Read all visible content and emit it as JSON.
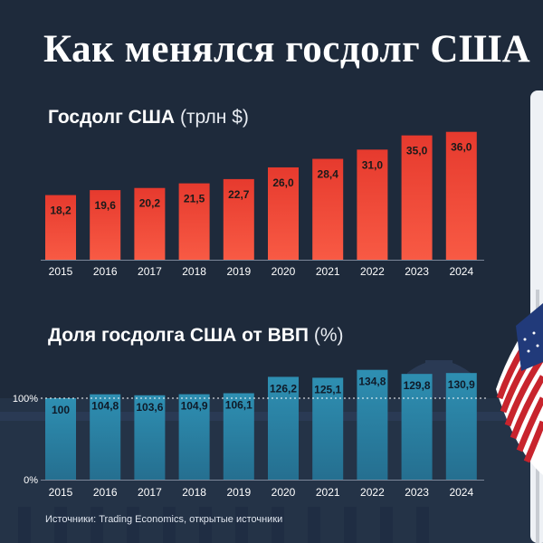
{
  "header": {
    "title": "Как менялся госдолг США"
  },
  "charts": {
    "debt": {
      "title_bold": "Госдолг США",
      "title_unit": "(трлн $)"
    },
    "share": {
      "title_bold": "Доля госдолга США от ВВП",
      "title_unit": "(%)",
      "ref_line_label": "100%",
      "zero_label": "0%"
    }
  },
  "footer": {
    "source": "Источники: Trading Economics, открытые источники"
  },
  "colors": {
    "background": "#1e2a3b",
    "debt_bar": "#f04a3a",
    "share_bar": "#2d87a8",
    "text": "#ffffff"
  },
  "chart_data": [
    {
      "type": "bar",
      "title": "Госдолг США (трлн $)",
      "categories": [
        "2015",
        "2016",
        "2017",
        "2018",
        "2019",
        "2020",
        "2021",
        "2022",
        "2023",
        "2024"
      ],
      "values": [
        18.2,
        19.6,
        20.2,
        21.5,
        22.7,
        26.0,
        28.4,
        31.0,
        35.0,
        36.0
      ],
      "value_labels": [
        "18,2",
        "19,6",
        "20,2",
        "21,5",
        "22,7",
        "26,0",
        "28,4",
        "31,0",
        "35,0",
        "36,0"
      ],
      "ylim": [
        0,
        40
      ],
      "grid": false
    },
    {
      "type": "bar",
      "title": "Доля госдолга США от ВВП (%)",
      "categories": [
        "2015",
        "2016",
        "2017",
        "2018",
        "2019",
        "2020",
        "2021",
        "2022",
        "2023",
        "2024"
      ],
      "values": [
        100,
        104.8,
        103.6,
        104.9,
        106.1,
        126.2,
        125.1,
        134.8,
        129.8,
        130.9
      ],
      "value_labels": [
        "100",
        "104,8",
        "103,6",
        "104,9",
        "106,1",
        "126,2",
        "125,1",
        "134,8",
        "129,8",
        "130,9"
      ],
      "ylim": [
        0,
        140
      ],
      "reference_line": 100,
      "grid": false
    }
  ]
}
